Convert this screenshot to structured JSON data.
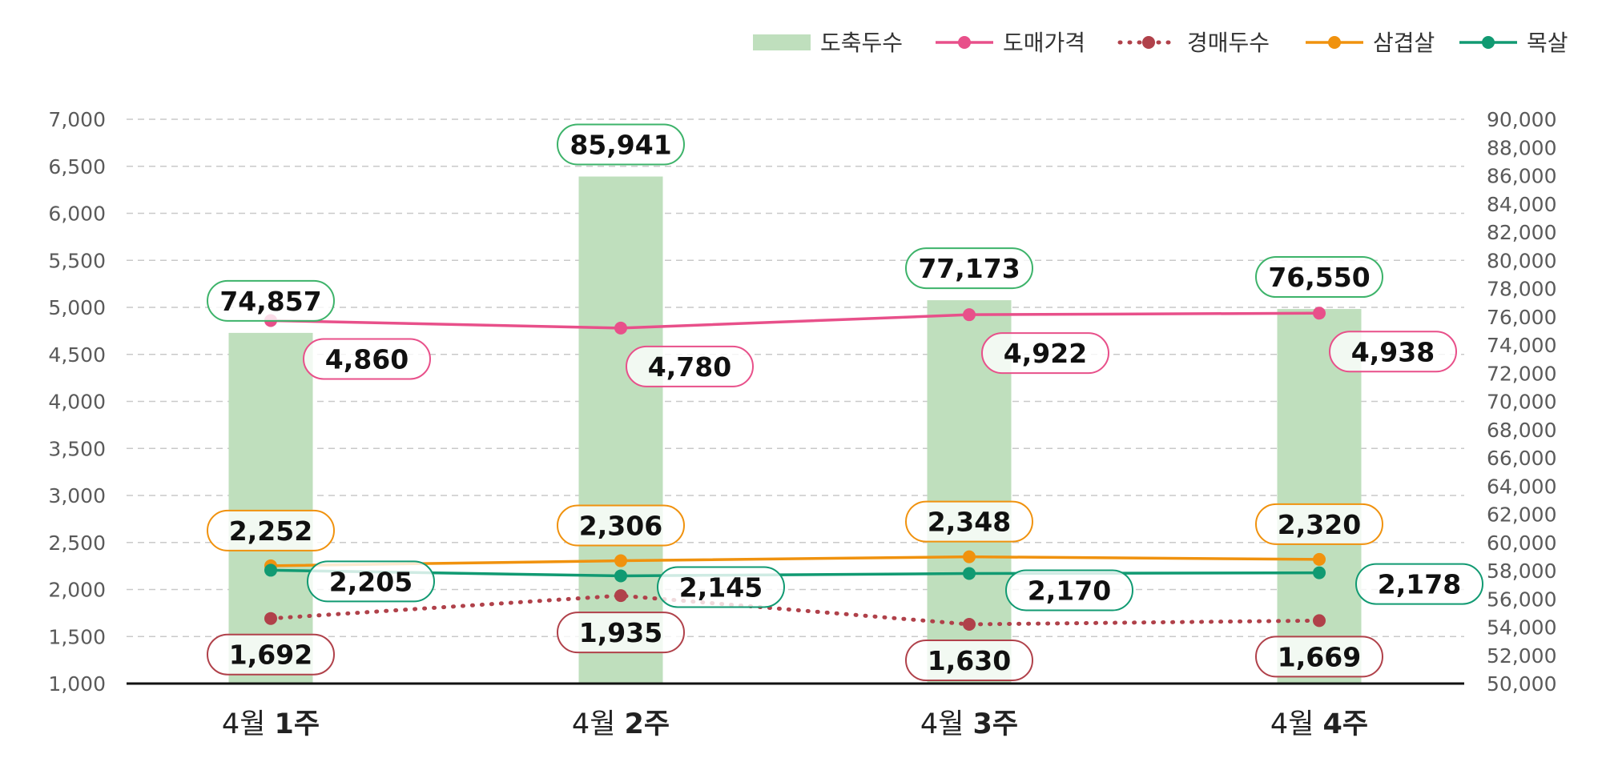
{
  "chart_data": {
    "type": "bar",
    "categories": [
      {
        "prefix": "4월",
        "week": "1주"
      },
      {
        "prefix": "4월",
        "week": "2주"
      },
      {
        "prefix": "4월",
        "week": "3주"
      },
      {
        "prefix": "4월",
        "week": "4주"
      }
    ],
    "left_axis": {
      "range": [
        1000,
        7000
      ],
      "ticks": [
        "1,000",
        "1,500",
        "2,000",
        "2,500",
        "3,000",
        "3,500",
        "4,000",
        "4,500",
        "5,000",
        "5,500",
        "6,000",
        "6,500",
        "7,000"
      ]
    },
    "right_axis": {
      "range": [
        50000,
        90000
      ],
      "ticks": [
        "50,000",
        "52,000",
        "54,000",
        "56,000",
        "58,000",
        "60,000",
        "62,000",
        "64,000",
        "66,000",
        "68,000",
        "70,000",
        "72,000",
        "74,000",
        "76,000",
        "78,000",
        "80,000",
        "82,000",
        "84,000",
        "86,000",
        "88,000",
        "90,000"
      ]
    },
    "grid": true,
    "legend_position": "top-right",
    "series": [
      {
        "name": "도축두수",
        "kind": "bar",
        "axis": "right",
        "color": "#bfdfbd",
        "border": "#3db36a",
        "values": [
          74857,
          85941,
          77173,
          76550
        ],
        "labels": [
          "74,857",
          "85,941",
          "77,173",
          "76,550"
        ]
      },
      {
        "name": "도매가격",
        "kind": "line",
        "axis": "left",
        "color": "#e8508a",
        "values": [
          4860,
          4780,
          4922,
          4938
        ],
        "labels": [
          "4,860",
          "4,780",
          "4,922",
          "4,938"
        ]
      },
      {
        "name": "경매두수",
        "kind": "dotted-line",
        "axis": "left",
        "color": "#b0414a",
        "values": [
          1692,
          1935,
          1630,
          1669
        ],
        "labels": [
          "1,692",
          "1,935",
          "1,630",
          "1,669"
        ]
      },
      {
        "name": "삼겹살",
        "kind": "line",
        "axis": "left",
        "color": "#f0920e",
        "values": [
          2252,
          2306,
          2348,
          2320
        ],
        "labels": [
          "2,252",
          "2,306",
          "2,348",
          "2,320"
        ]
      },
      {
        "name": "목살",
        "kind": "line",
        "axis": "left",
        "color": "#119a72",
        "values": [
          2205,
          2145,
          2170,
          2178
        ],
        "labels": [
          "2,205",
          "2,145",
          "2,170",
          "2,178"
        ]
      }
    ]
  }
}
